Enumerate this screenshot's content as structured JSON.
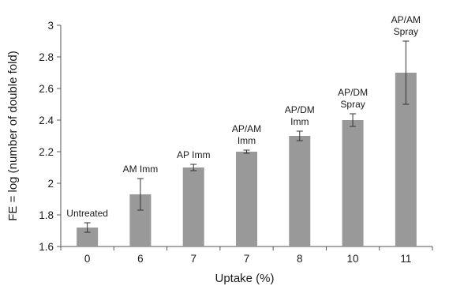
{
  "chart_data": {
    "type": "bar",
    "xlabel": "Uptake (%)",
    "ylabel": "FE = log (number of double fold)",
    "ylim": [
      1.6,
      3.0
    ],
    "yticks": [
      1.6,
      1.8,
      2,
      2.2,
      2.4,
      2.6,
      2.8,
      3
    ],
    "grid": false,
    "categories": [
      "0",
      "6",
      "7",
      "7",
      "8",
      "10",
      "11"
    ],
    "values": [
      1.72,
      1.93,
      2.1,
      2.2,
      2.3,
      2.4,
      2.7
    ],
    "errors": [
      0.03,
      0.1,
      0.02,
      0.01,
      0.03,
      0.04,
      0.2
    ],
    "bar_labels": [
      [
        "Untreated"
      ],
      [
        "AM Imm"
      ],
      [
        "AP Imm"
      ],
      [
        "AP/AM",
        "Imm"
      ],
      [
        "AP/DM",
        "Imm"
      ],
      [
        "AP/DM",
        "Spray"
      ],
      [
        "AP/AM",
        "Spray"
      ]
    ],
    "bar_color": "#999999",
    "error_bar_color": "#333333"
  }
}
